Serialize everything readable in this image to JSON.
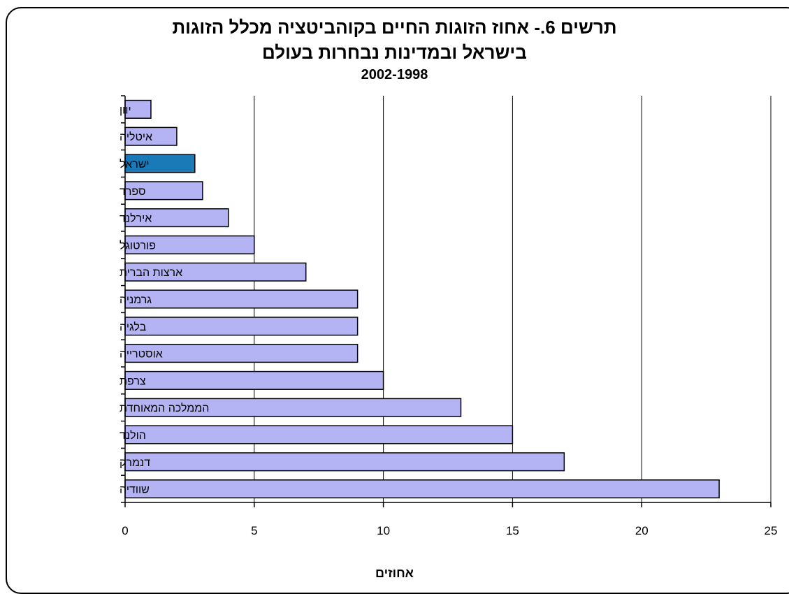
{
  "chart_data": {
    "type": "bar",
    "orientation": "horizontal",
    "title": "תרשים 6.- אחוז הזוגות החיים בקוהביטציה מכלל הזוגות",
    "subtitle": "בישראל ובמדינות נבחרות בעולם",
    "years": "2002-1998",
    "xlabel": "אחוזים",
    "xlim": [
      0,
      25
    ],
    "xticks": [
      0,
      5,
      10,
      15,
      20,
      25
    ],
    "grid": "vertical",
    "categories": [
      "יוון",
      "איטליה",
      "ישראל",
      "ספרד",
      "אירלנד",
      "פורטוגל",
      "ארצות הברית",
      "גרמניה",
      "בלגיה",
      "אוסטרייה",
      "צרפת",
      "הממלכה המאוחדת",
      "הולנד",
      "דנמרק",
      "שוודיה"
    ],
    "values": [
      1,
      2,
      2.7,
      3,
      4,
      5,
      7,
      9,
      9,
      9,
      10,
      13,
      15,
      17,
      23
    ],
    "colors": {
      "bar": "#b4b4f5",
      "highlight": "#1a7ab8",
      "highlight_category": "ישראל",
      "edge": "#000000",
      "grid": "#000000"
    }
  }
}
